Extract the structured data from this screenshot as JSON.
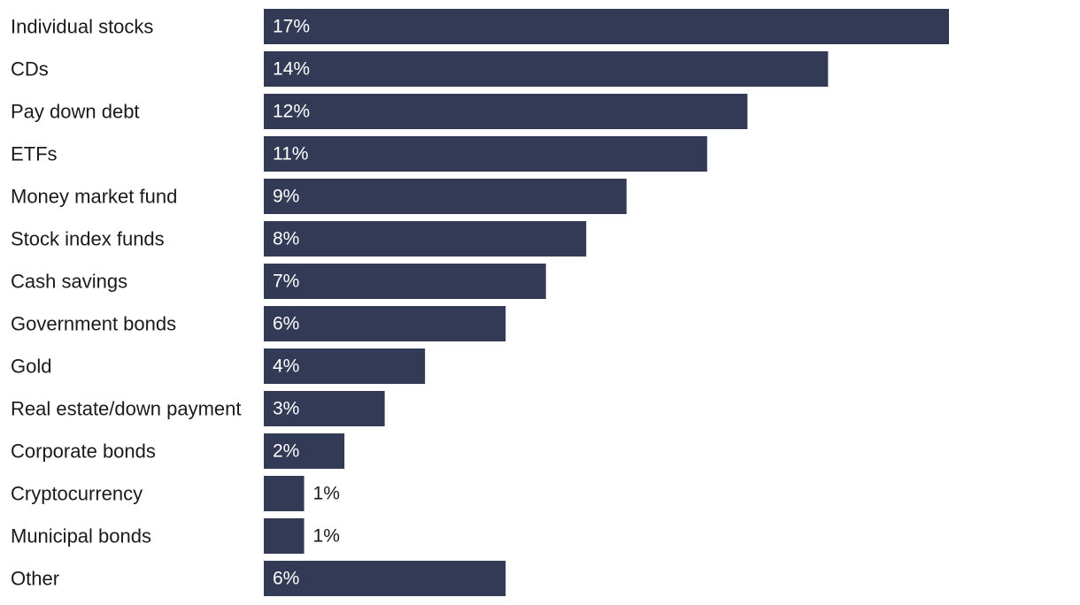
{
  "chart_data": {
    "type": "bar",
    "orientation": "horizontal",
    "categories": [
      "Individual stocks",
      "CDs",
      "Pay down debt",
      "ETFs",
      "Money market fund",
      "Stock index funds",
      "Cash savings",
      "Government bonds",
      "Gold",
      "Real estate/down payment",
      "Corporate bonds",
      "Cryptocurrency",
      "Municipal bonds",
      "Other"
    ],
    "values": [
      17,
      14,
      12,
      11,
      9,
      8,
      7,
      6,
      4,
      3,
      2,
      1,
      1,
      6
    ],
    "value_labels": [
      "17%",
      "14%",
      "12%",
      "11%",
      "9%",
      "8%",
      "7%",
      "6%",
      "4%",
      "3%",
      "2%",
      "1%",
      "1%",
      "6%"
    ],
    "title": "",
    "xlabel": "",
    "ylabel": "",
    "xlim": [
      0,
      17
    ],
    "grid": false,
    "legend": "none",
    "bar_color": "#333a56"
  }
}
